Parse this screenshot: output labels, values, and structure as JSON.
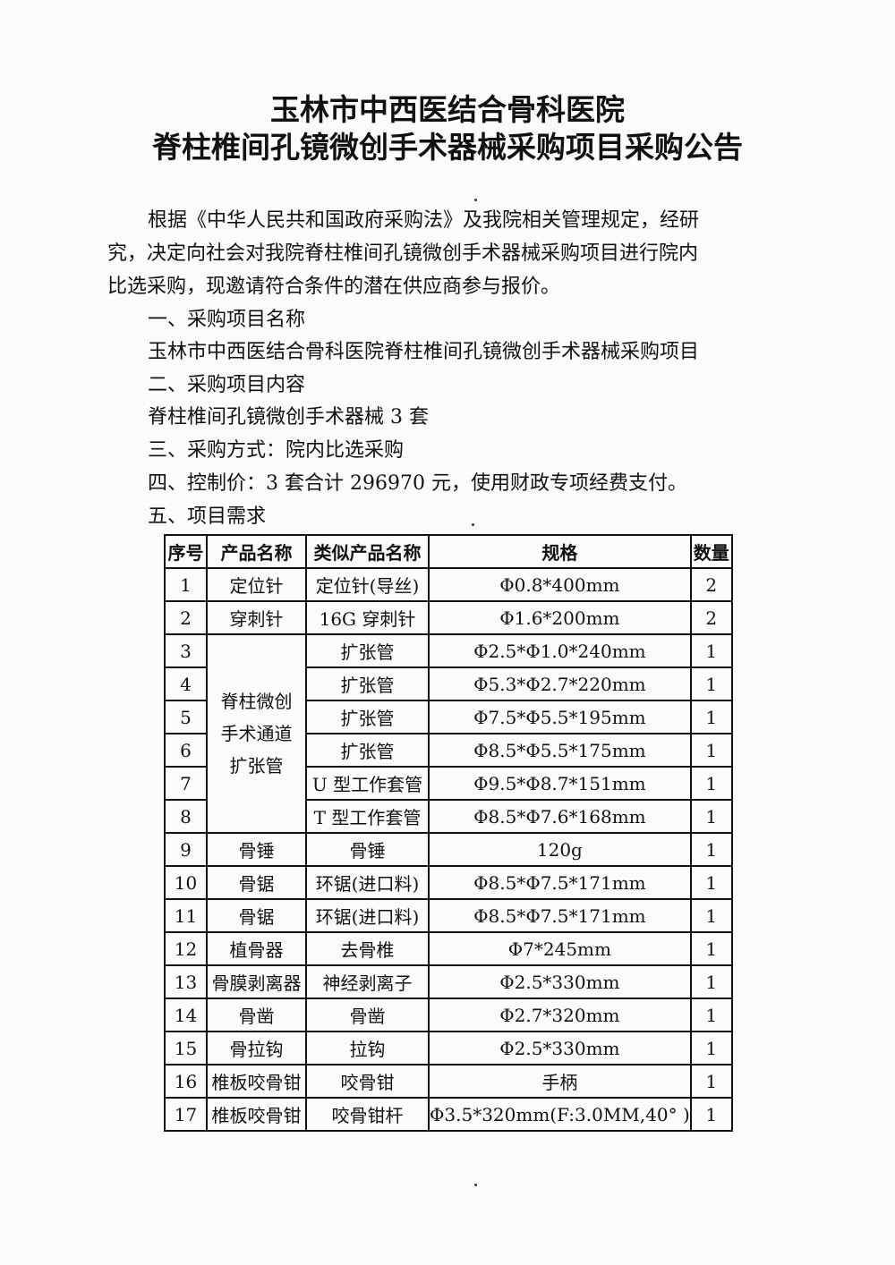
{
  "title": {
    "line1": "玉林市中西医结合骨科医院",
    "line2": "脊柱椎间孔镜微创手术器械采购项目采购公告"
  },
  "intro": [
    "根据《中华人民共和国政府采购法》及我院相关管理规定，经研",
    "究，决定向社会对我院脊柱椎间孔镜微创手术器械采购项目进行院内",
    "比选采购，现邀请符合条件的潜在供应商参与报价。"
  ],
  "sections": {
    "s1_heading": "一、采购项目名称",
    "s1_body": "玉林市中西医结合骨科医院脊柱椎间孔镜微创手术器械采购项目",
    "s2_heading": "二、采购项目内容",
    "s2_body": "脊柱椎间孔镜微创手术器械 3 套",
    "s3_heading": "三、采购方式：",
    "s3_body": "院内比选采购",
    "s4_heading": "四、控制价：",
    "s4_body": "3 套合计 296970 元，使用财政专项经费支付。",
    "s5_heading": "五、项目需求"
  },
  "table": {
    "headers": [
      "序号",
      "产品名称",
      "类似产品名称",
      "规格",
      "数量"
    ],
    "rows": [
      [
        "1",
        "定位针",
        "定位针(导丝)",
        "Φ0.8*400mm",
        "2"
      ],
      [
        "2",
        "穿刺针",
        "16G 穿刺针",
        "Φ1.6*200mm",
        "2"
      ],
      [
        "3",
        "脊柱微创手术通道扩张管",
        "扩张管",
        "Φ2.5*Φ1.0*240mm",
        "1"
      ],
      [
        "4",
        "脊柱微创手术通道扩张管",
        "扩张管",
        "Φ5.3*Φ2.7*220mm",
        "1"
      ],
      [
        "5",
        "脊柱微创手术通道扩张管",
        "扩张管",
        "Φ7.5*Φ5.5*195mm",
        "1"
      ],
      [
        "6",
        "脊柱微创手术通道扩张管",
        "扩张管",
        "Φ8.5*Φ5.5*175mm",
        "1"
      ],
      [
        "7",
        "脊柱微创手术通道扩张管",
        "U 型工作套管",
        "Φ9.5*Φ8.7*151mm",
        "1"
      ],
      [
        "8",
        "脊柱微创手术通道扩张管",
        "T 型工作套管",
        "Φ8.5*Φ7.6*168mm",
        "1"
      ],
      [
        "9",
        "骨锤",
        "骨锤",
        "120g",
        "1"
      ],
      [
        "10",
        "骨锯",
        "环锯(进口料)",
        "Φ8.5*Φ7.5*171mm",
        "1"
      ],
      [
        "11",
        "骨锯",
        "环锯(进口料)",
        "Φ8.5*Φ7.5*171mm",
        "1"
      ],
      [
        "12",
        "植骨器",
        "去骨椎",
        "Φ7*245mm",
        "1"
      ],
      [
        "13",
        "骨膜剥离器",
        "神经剥离子",
        "Φ2.5*330mm",
        "1"
      ],
      [
        "14",
        "骨凿",
        "骨凿",
        "Φ2.7*320mm",
        "1"
      ],
      [
        "15",
        "骨拉钩",
        "拉钩",
        "Φ2.5*330mm",
        "1"
      ],
      [
        "16",
        "椎板咬骨钳",
        "咬骨钳",
        "手柄",
        "1"
      ],
      [
        "17",
        "椎板咬骨钳",
        "咬骨钳杆",
        "Φ3.5*320mm(F:3.0MM,40° )",
        "1"
      ]
    ],
    "merged_group_label_lines": [
      "脊柱微创",
      "手术通道",
      "扩张管"
    ]
  }
}
